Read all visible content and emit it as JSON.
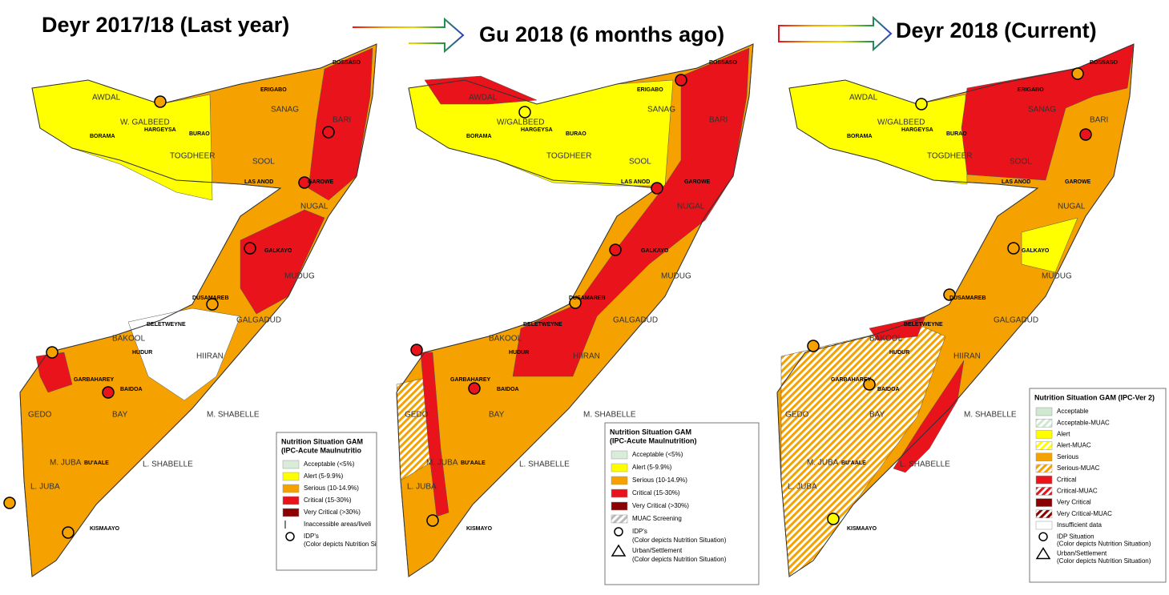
{
  "panels": [
    {
      "title": "Deyr 2017/18 (Last year)",
      "legend": {
        "heading": [
          "Nutrition Situation GAM",
          "(IPC-Acute Maulnutritio"
        ],
        "items": [
          "Acceptable  (<5%)",
          "Alert  (5-9.9%)",
          "Serious  (10-14.9%)",
          "Critical  (15-30%)",
          "Very Critical  (>30%)",
          "Inaccessible areas/liveli",
          "IDP's",
          "(Color depicts Nutrition Si"
        ]
      },
      "places": [
        "AWDAL",
        "W. GALBEED",
        "SANAG",
        "BARI",
        "TOGDHEER",
        "SOOL",
        "NUGAL",
        "MUDUG",
        "GALGADUD",
        "BAKOOL",
        "HIIRAN",
        "GEDO",
        "BAY",
        "M. SHABELLE",
        "L. SHABELLE",
        "M. JUBA",
        "L. JUBA",
        "BOSSASO",
        "ERIGABO",
        "BORAMA",
        "HARGEYSA",
        "BURAO",
        "LAS ANOD",
        "GAROWE",
        "GALKAYO",
        "DUSAMAREB",
        "BELETWEYNE",
        "HUDUR",
        "GARBAHAREY",
        "BAIDOA",
        "BU'AALE",
        "KISMAAYO"
      ]
    },
    {
      "title": "Gu 2018 (6 months ago)",
      "legend": {
        "heading": [
          "Nutrition Situation GAM",
          "(IPC-Acute Maulnutrition)"
        ],
        "items": [
          "Acceptable  (<5%)",
          "Alert  (5-9.9%)",
          "Serious  (10-14.9%)",
          "Critical  (15-30%)",
          "Very Critical  (>30%)",
          "MUAC Screening",
          "IDP's",
          "(Color depicts Nutrition Situation)",
          "Urban/Settlement",
          "(Color depicts Nutrition Situation)"
        ]
      },
      "places": [
        "AWDAL",
        "W/GALBEED",
        "SANAG",
        "BARI",
        "TOGDHEER",
        "SOOL",
        "NUGAL",
        "MUDUG",
        "GALGADUD",
        "BAKOOL",
        "HIIRAN",
        "GEDO",
        "BAY",
        "M. SHABELLE",
        "L. SHABELLE",
        "M. JUBA",
        "L. JUBA",
        "BOSSASO",
        "ERIGABO",
        "BORAMA",
        "HARGEYSA",
        "BURAO",
        "LAS ANOD",
        "GAROWE",
        "GALKAYO",
        "DUSAMAREB",
        "BELETWEYNE",
        "HUDUR",
        "GARBAHAREY",
        "BAIDOA",
        "BU'AALE",
        "KISMAYO"
      ]
    },
    {
      "title": "Deyr 2018 (Current)",
      "legend": {
        "heading": [
          "Nutrition Situation GAM (IPC-Ver 2)"
        ],
        "items": [
          "Acceptable",
          "Acceptable-MUAC",
          "Alert",
          "Alert-MUAC",
          "Serious",
          "Serious-MUAC",
          "Critical",
          "Critical-MUAC",
          "Very Critical",
          "Very Critical-MUAC",
          "Insufficient data",
          "IDP Situation",
          "(Color depicts Nutrition Situation)",
          "Urban/Settlement",
          "(Color depicts Nutrition Situation)"
        ]
      },
      "places": [
        "AWDAL",
        "W/GALBEED",
        "SANAG",
        "BARI",
        "TOGDHEER",
        "SOOL",
        "NUGAL",
        "MUDUG",
        "GALGADUD",
        "BAKOOL",
        "HIIRAN",
        "GEDO",
        "BAY",
        "M. SHABELLE",
        "L. SHABELLE",
        "M. JUBA",
        "L. JUBA",
        "BOSSASO",
        "ERIGABO",
        "BORAMA",
        "HARGEYSA",
        "BURAO",
        "LAS ANOD",
        "GAROWE",
        "GALKAYO",
        "DUSAMAREB",
        "BELETWEYNE",
        "HUDUR",
        "GARBAHAREY",
        "BAIDOA",
        "BU'AALE",
        "KISMAAYO"
      ]
    }
  ]
}
